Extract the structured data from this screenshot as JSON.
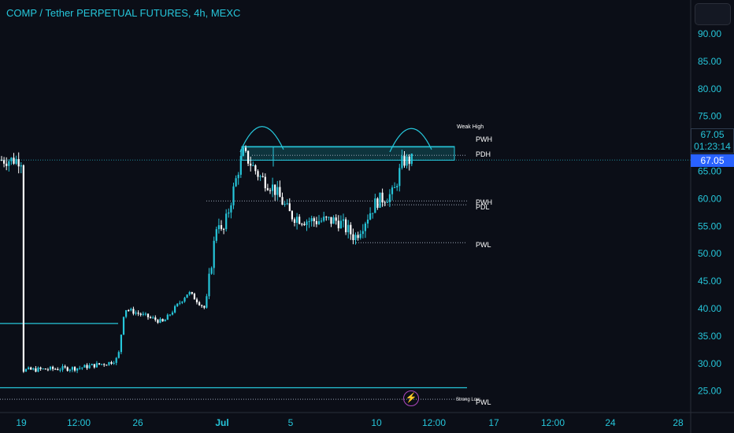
{
  "header": {
    "title": "COMP / Tether PERPETUAL FUTURES, 4h, MEXC"
  },
  "price_tags": {
    "current_price": "67.05",
    "countdown": "01:23:14",
    "last_price": "67.05"
  },
  "colors": {
    "background": "#0b0e17",
    "accent": "#26c6da",
    "candle_up": "#26c6da",
    "candle_down": "#ffffff",
    "zone_fill": "#12535c",
    "price_tag_blue": "#2962ff",
    "bolt": "#ab47bc"
  },
  "icons": {
    "bolt": "lightning-bolt-icon"
  },
  "chart_data": {
    "type": "candlestick",
    "symbol": "COMP / Tether PERPETUAL FUTURES",
    "interval": "4h",
    "exchange": "MEXC",
    "y_axis": {
      "ticks": [
        "90.00",
        "85.00",
        "80.00",
        "75.00",
        "70.00",
        "65.00",
        "60.00",
        "55.00",
        "50.00",
        "45.00",
        "40.00",
        "35.00",
        "30.00",
        "25.00"
      ],
      "ylim": [
        22.5,
        92.5
      ]
    },
    "x_axis": {
      "ticks": [
        "19",
        "12:00",
        "26",
        "Jul",
        "5",
        "10",
        "12:00",
        "17",
        "12:00",
        "24",
        "28"
      ]
    },
    "price_path": [
      {
        "x": "19",
        "price": 28.8
      },
      {
        "x": "12:00",
        "price": 29.2
      },
      {
        "x": "24",
        "price": 30.2
      },
      {
        "x": "25",
        "price": 31.0
      },
      {
        "x": "26",
        "price": 40.0
      },
      {
        "x": "27",
        "price": 37.5
      },
      {
        "x": "28",
        "price": 43.0
      },
      {
        "x": "29",
        "price": 40.0
      },
      {
        "x": "30",
        "price": 57.0
      },
      {
        "x": "Jul",
        "price": 53.0
      },
      {
        "x": "2",
        "price": 68.5
      },
      {
        "x": "3",
        "price": 64.0
      },
      {
        "x": "4",
        "price": 62.0
      },
      {
        "x": "5",
        "price": 57.0
      },
      {
        "x": "6",
        "price": 56.0
      },
      {
        "x": "8",
        "price": 56.0
      },
      {
        "x": "9",
        "price": 53.0
      },
      {
        "x": "10",
        "price": 59.5
      },
      {
        "x": "11",
        "price": 61.0
      },
      {
        "x": "12",
        "price": 66.8
      },
      {
        "x": "12:00",
        "price": 67.05
      }
    ],
    "levels": [
      {
        "label": "Weak High",
        "price": 69.8
      },
      {
        "label": "PWH",
        "price": 69.3
      },
      {
        "label": "PDH",
        "price": 67.9
      },
      {
        "label": "PWH",
        "price": 59.6
      },
      {
        "label": "PDL",
        "price": 58.9
      },
      {
        "label": "PWL",
        "price": 52.0
      },
      {
        "label": "Strong Low",
        "price": 24.2
      },
      {
        "label": "PWL",
        "price": 23.5
      }
    ],
    "horizontal_lines": [
      {
        "price": 37.3
      },
      {
        "price": 25.6
      }
    ],
    "zone": {
      "top": 69.5,
      "bottom": 67.0
    },
    "last_price": 67.05,
    "grid": false
  }
}
